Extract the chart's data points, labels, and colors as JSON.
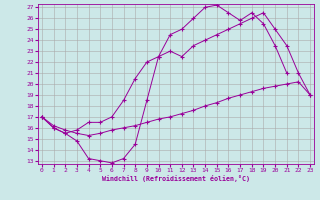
{
  "xlabel": "Windchill (Refroidissement éolien,°C)",
  "bg_color": "#cce8e8",
  "line_color": "#990099",
  "grid_color": "#aaaaaa",
  "ylim": [
    13,
    27
  ],
  "xlim": [
    0,
    23
  ],
  "yticks": [
    13,
    14,
    15,
    16,
    17,
    18,
    19,
    20,
    21,
    22,
    23,
    24,
    25,
    26,
    27
  ],
  "xticks": [
    0,
    1,
    2,
    3,
    4,
    5,
    6,
    7,
    8,
    9,
    10,
    11,
    12,
    13,
    14,
    15,
    16,
    17,
    18,
    19,
    20,
    21,
    22,
    23
  ],
  "line1_x": [
    0,
    1,
    2,
    3,
    4,
    5,
    6,
    7,
    8,
    9,
    10,
    11,
    12,
    13,
    14,
    15,
    16,
    17,
    18,
    19,
    20,
    21
  ],
  "line1_y": [
    17.0,
    16.0,
    15.5,
    14.8,
    13.2,
    13.0,
    12.8,
    13.2,
    14.5,
    18.5,
    22.5,
    24.5,
    25.0,
    26.0,
    27.0,
    27.2,
    26.5,
    25.8,
    26.5,
    25.5,
    23.5,
    21.0
  ],
  "line2_x": [
    0,
    1,
    2,
    3,
    4,
    5,
    6,
    7,
    8,
    9,
    10,
    11,
    12,
    13,
    14,
    15,
    16,
    17,
    18,
    19,
    20,
    21,
    22,
    23
  ],
  "line2_y": [
    17.0,
    16.2,
    15.8,
    15.5,
    15.3,
    15.5,
    15.8,
    16.0,
    16.2,
    16.5,
    16.8,
    17.0,
    17.3,
    17.6,
    18.0,
    18.3,
    18.7,
    19.0,
    19.3,
    19.6,
    19.8,
    20.0,
    20.2,
    19.0
  ],
  "line3_x": [
    0,
    1,
    2,
    3,
    4,
    5,
    6,
    7,
    8,
    9,
    10,
    11,
    12,
    13,
    14,
    15,
    16,
    17,
    18,
    19,
    20,
    21,
    22,
    23
  ],
  "line3_y": [
    17.0,
    16.0,
    15.5,
    15.8,
    16.5,
    16.5,
    17.0,
    18.5,
    20.5,
    22.0,
    22.5,
    23.0,
    22.5,
    23.5,
    24.0,
    24.5,
    25.0,
    25.5,
    26.0,
    26.5,
    25.0,
    23.5,
    21.0,
    19.0
  ]
}
